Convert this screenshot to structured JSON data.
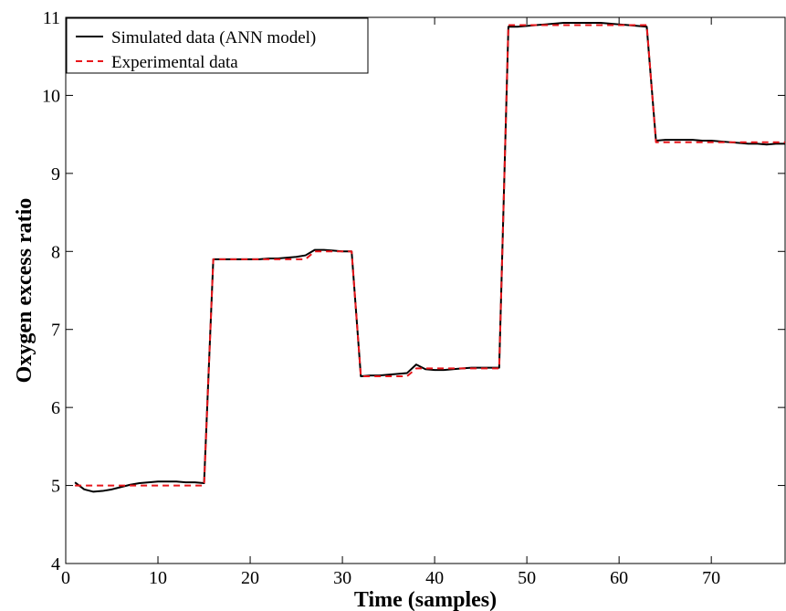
{
  "chart_data": {
    "type": "line",
    "xlabel": "Time (samples)",
    "ylabel": "Oxygen excess ratio",
    "xlim": [
      0,
      78
    ],
    "ylim": [
      4,
      11
    ],
    "xticks": [
      0,
      10,
      20,
      30,
      40,
      50,
      60,
      70
    ],
    "yticks": [
      4,
      5,
      6,
      7,
      8,
      9,
      10,
      11
    ],
    "xtick_labels": [
      "0",
      "10",
      "20",
      "30",
      "40",
      "50",
      "60",
      "70"
    ],
    "ytick_labels": [
      "4",
      "5",
      "6",
      "7",
      "8",
      "9",
      "10",
      "11"
    ],
    "grid": false,
    "legend_position": "top-left",
    "series": [
      {
        "name": "Simulated data (ANN model)",
        "color": "#000000",
        "style": "solid",
        "x": [
          1,
          2,
          3,
          4,
          5,
          6,
          7,
          8,
          9,
          10,
          11,
          12,
          13,
          14,
          15,
          16,
          17,
          18,
          19,
          20,
          21,
          22,
          23,
          24,
          25,
          26,
          27,
          28,
          29,
          30,
          31,
          32,
          33,
          34,
          35,
          36,
          37,
          38,
          39,
          40,
          41,
          42,
          43,
          44,
          45,
          46,
          47,
          48,
          49,
          50,
          51,
          52,
          53,
          54,
          55,
          56,
          57,
          58,
          59,
          60,
          61,
          62,
          63,
          64,
          65,
          66,
          67,
          68,
          69,
          70,
          71,
          72,
          73,
          74,
          75,
          76,
          77,
          78
        ],
        "y": [
          5.04,
          4.95,
          4.92,
          4.93,
          4.95,
          4.98,
          5.01,
          5.03,
          5.04,
          5.05,
          5.05,
          5.05,
          5.04,
          5.04,
          5.03,
          7.9,
          7.9,
          7.9,
          7.9,
          7.9,
          7.9,
          7.91,
          7.91,
          7.92,
          7.93,
          7.95,
          8.02,
          8.02,
          8.01,
          8.0,
          8.0,
          6.4,
          6.41,
          6.41,
          6.42,
          6.43,
          6.44,
          6.55,
          6.49,
          6.48,
          6.48,
          6.49,
          6.5,
          6.51,
          6.51,
          6.51,
          6.51,
          10.88,
          10.88,
          10.89,
          10.9,
          10.91,
          10.92,
          10.93,
          10.93,
          10.93,
          10.93,
          10.93,
          10.92,
          10.91,
          10.9,
          10.89,
          10.88,
          9.42,
          9.43,
          9.43,
          9.43,
          9.43,
          9.42,
          9.42,
          9.41,
          9.4,
          9.39,
          9.38,
          9.38,
          9.37,
          9.38,
          9.38
        ]
      },
      {
        "name": "Experimental data",
        "color": "#e8161b",
        "style": "dashed",
        "x": [
          1,
          15,
          16,
          26,
          27,
          31,
          32,
          37,
          38,
          47,
          48,
          63,
          64,
          78
        ],
        "y": [
          5.0,
          5.0,
          7.9,
          7.9,
          8.0,
          8.0,
          6.4,
          6.4,
          6.5,
          6.5,
          10.9,
          10.9,
          9.4,
          9.4
        ]
      }
    ]
  }
}
